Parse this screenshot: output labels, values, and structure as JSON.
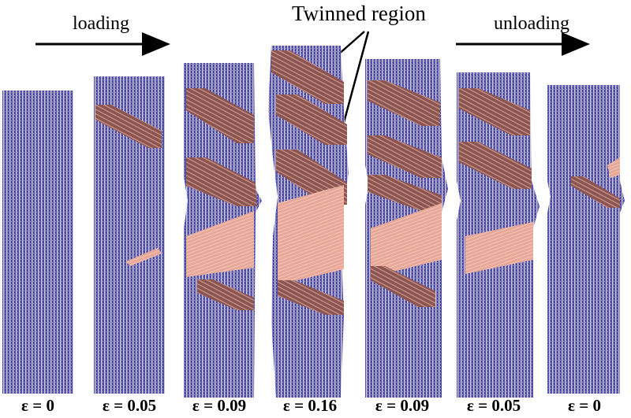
{
  "header": {
    "loading_label": "loading",
    "unloading_label": "unloading",
    "annotation": "Twinned region"
  },
  "colors": {
    "matrix": "#4a4ea8",
    "matrix_stripe": "#d8c8d8",
    "twin_dark": "#8a5550",
    "twin_light": "#e8a898",
    "arrow": "#000000"
  },
  "snapshots": [
    {
      "strain": "ε = 0"
    },
    {
      "strain": "ε = 0.05"
    },
    {
      "strain": "ε = 0.09"
    },
    {
      "strain": "ε = 0.16"
    },
    {
      "strain": "ε = 0.09"
    },
    {
      "strain": "ε = 0.05"
    },
    {
      "strain": "ε = 0"
    }
  ]
}
